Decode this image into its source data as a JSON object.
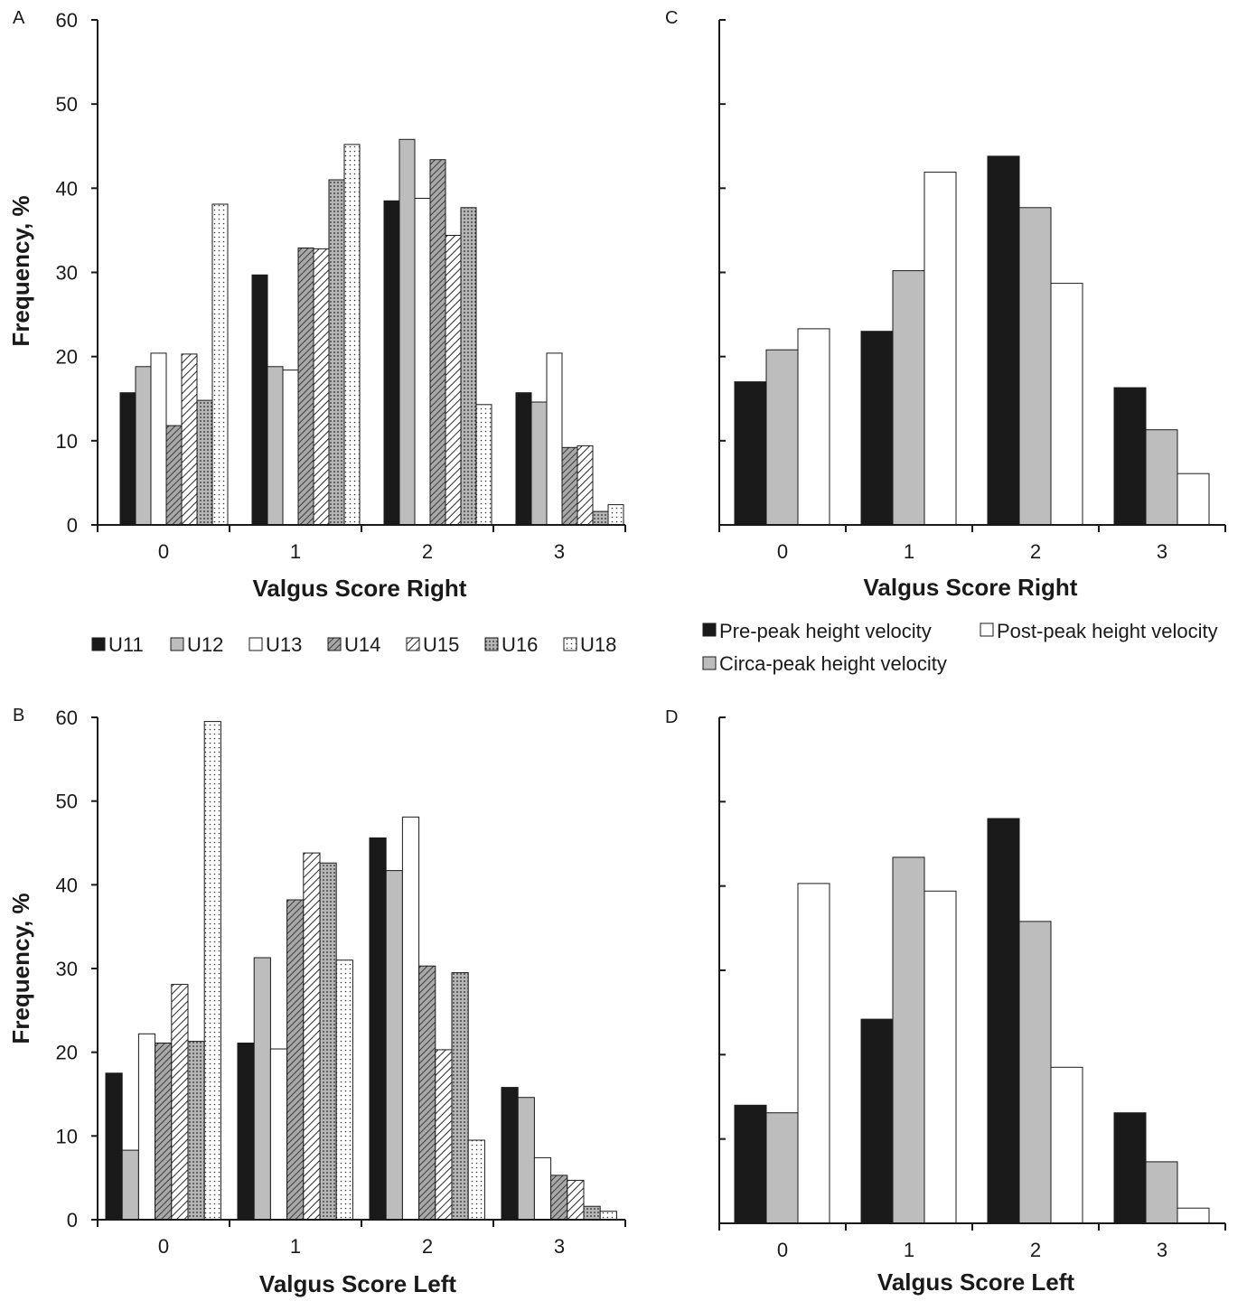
{
  "chart_data": [
    {
      "panel": "A",
      "type": "bar",
      "xlabel": "Valgus Score Right",
      "ylabel": "Frequency, %",
      "ylim": [
        0,
        60
      ],
      "yticks": [
        "0",
        "10",
        "20",
        "30",
        "40",
        "50",
        "60"
      ],
      "categories": [
        "0",
        "1",
        "2",
        "3"
      ],
      "series": [
        {
          "name": "U11",
          "values": [
            15.7,
            29.7,
            38.5,
            15.7
          ]
        },
        {
          "name": "U12",
          "values": [
            18.8,
            18.8,
            45.8,
            14.6
          ]
        },
        {
          "name": "U13",
          "values": [
            20.4,
            18.4,
            38.8,
            20.4
          ]
        },
        {
          "name": "U14",
          "values": [
            11.8,
            32.9,
            43.4,
            9.2
          ]
        },
        {
          "name": "U15",
          "values": [
            20.3,
            32.8,
            34.4,
            9.4
          ]
        },
        {
          "name": "U16",
          "values": [
            14.8,
            41.0,
            37.7,
            1.6
          ]
        },
        {
          "name": "U18",
          "values": [
            38.1,
            45.2,
            14.3,
            2.4
          ]
        }
      ]
    },
    {
      "panel": "B",
      "type": "bar",
      "xlabel": "Valgus Score Left",
      "ylabel": "Frequency, %",
      "ylim": [
        0,
        60
      ],
      "yticks": [
        "0",
        "10",
        "20",
        "30",
        "40",
        "50",
        "60"
      ],
      "categories": [
        "0",
        "1",
        "2",
        "3"
      ],
      "series": [
        {
          "name": "U11",
          "values": [
            17.5,
            21.1,
            45.6,
            15.8
          ]
        },
        {
          "name": "U12",
          "values": [
            8.3,
            31.3,
            41.7,
            14.6
          ]
        },
        {
          "name": "U13",
          "values": [
            22.2,
            20.4,
            48.1,
            7.4
          ]
        },
        {
          "name": "U14",
          "values": [
            21.1,
            38.2,
            30.3,
            5.3
          ]
        },
        {
          "name": "U15",
          "values": [
            28.1,
            43.8,
            20.3,
            4.7
          ]
        },
        {
          "name": "U16",
          "values": [
            21.3,
            42.6,
            29.5,
            1.6
          ]
        },
        {
          "name": "U18",
          "values": [
            59.5,
            31.0,
            9.5,
            1.0
          ]
        }
      ]
    },
    {
      "panel": "C",
      "type": "bar",
      "xlabel": "Valgus Score Right",
      "ylim": [
        0,
        60
      ],
      "categories": [
        "0",
        "1",
        "2",
        "3"
      ],
      "series": [
        {
          "name": "Pre-peak height velocity",
          "values": [
            17.0,
            23.0,
            43.8,
            16.3
          ]
        },
        {
          "name": "Circa-peak height velocity",
          "values": [
            20.8,
            30.2,
            37.7,
            11.3
          ]
        },
        {
          "name": "Post-peak height velocity",
          "values": [
            23.3,
            41.9,
            28.7,
            6.1
          ]
        }
      ]
    },
    {
      "panel": "D",
      "type": "bar",
      "xlabel": "Valgus Score Left",
      "ylim": [
        0,
        60
      ],
      "categories": [
        "0",
        "1",
        "2",
        "3"
      ],
      "series": [
        {
          "name": "Pre-peak height velocity",
          "values": [
            14.0,
            24.2,
            48.0,
            13.1
          ]
        },
        {
          "name": "Circa-peak height velocity",
          "values": [
            13.1,
            43.4,
            35.8,
            7.3
          ]
        },
        {
          "name": "Post-peak height velocity",
          "values": [
            40.3,
            39.4,
            18.5,
            1.8
          ]
        }
      ]
    }
  ],
  "legends": {
    "age_groups": [
      "U11",
      "U12",
      "U13",
      "U14",
      "U15",
      "U16",
      "U18"
    ],
    "phv": [
      "Pre-peak height velocity",
      "Post-peak height velocity",
      "Circa-peak height velocity"
    ]
  },
  "styles": {
    "U11": {
      "fill": "#1a1a1a",
      "pattern": "solid"
    },
    "U12": {
      "fill": "#bdbdbd",
      "pattern": "solid"
    },
    "U13": {
      "fill": "#ffffff",
      "pattern": "solid"
    },
    "U14": {
      "fill": "#a8a8a8",
      "pattern": "dense-diagonal"
    },
    "U15": {
      "fill": "#ffffff",
      "pattern": "diagonal"
    },
    "U16": {
      "fill": "#b5b5b5",
      "pattern": "dots"
    },
    "U18": {
      "fill": "#ffffff",
      "pattern": "fine-dots"
    },
    "Pre-peak height velocity": {
      "fill": "#1a1a1a",
      "pattern": "solid"
    },
    "Circa-peak height velocity": {
      "fill": "#bdbdbd",
      "pattern": "solid"
    },
    "Post-peak height velocity": {
      "fill": "#ffffff",
      "pattern": "solid"
    }
  }
}
